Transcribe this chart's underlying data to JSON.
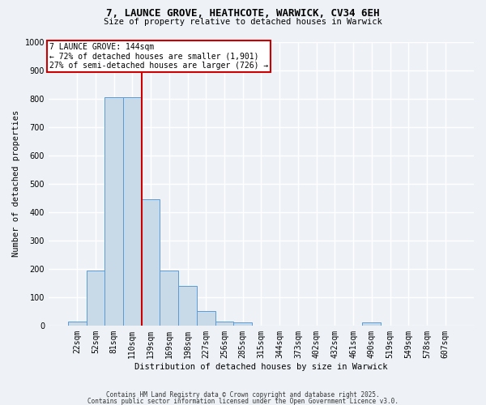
{
  "title1": "7, LAUNCE GROVE, HEATHCOTE, WARWICK, CV34 6EH",
  "title2": "Size of property relative to detached houses in Warwick",
  "xlabel": "Distribution of detached houses by size in Warwick",
  "ylabel": "Number of detached properties",
  "bar_labels": [
    "22sqm",
    "52sqm",
    "81sqm",
    "110sqm",
    "139sqm",
    "169sqm",
    "198sqm",
    "227sqm",
    "256sqm",
    "285sqm",
    "315sqm",
    "344sqm",
    "373sqm",
    "402sqm",
    "432sqm",
    "461sqm",
    "490sqm",
    "519sqm",
    "549sqm",
    "578sqm",
    "607sqm"
  ],
  "bar_values": [
    15,
    195,
    805,
    805,
    445,
    195,
    140,
    50,
    15,
    10,
    0,
    0,
    0,
    0,
    0,
    0,
    10,
    0,
    0,
    0,
    0
  ],
  "bar_color": "#c8d9e8",
  "bar_edge_color": "#5b9bd5",
  "red_line_index": 4,
  "annotation_title": "7 LAUNCE GROVE: 144sqm",
  "annotation_line1": "← 72% of detached houses are smaller (1,901)",
  "annotation_line2": "27% of semi-detached houses are larger (726) →",
  "annotation_box_color": "#ffffff",
  "annotation_box_edge": "#cc0000",
  "red_line_color": "#cc0000",
  "background_color": "#eef2f7",
  "grid_color": "#ffffff",
  "ylim": [
    0,
    1000
  ],
  "yticks": [
    0,
    100,
    200,
    300,
    400,
    500,
    600,
    700,
    800,
    900,
    1000
  ],
  "footer1": "Contains HM Land Registry data © Crown copyright and database right 2025.",
  "footer2": "Contains public sector information licensed under the Open Government Licence v3.0."
}
